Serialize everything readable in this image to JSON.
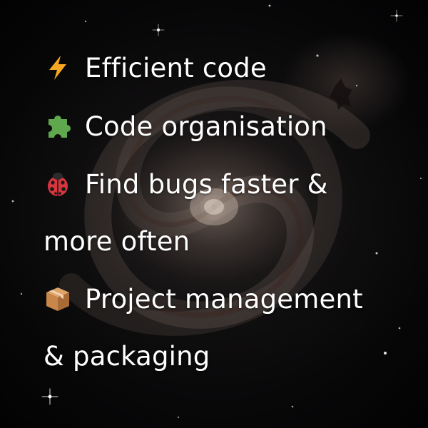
{
  "features": [
    {
      "icon": "lightning-bolt-icon",
      "text": "Efficient code"
    },
    {
      "icon": "puzzle-piece-icon",
      "text": "Code organisation"
    },
    {
      "icon": "ladybug-icon",
      "text": "Find bugs faster &"
    },
    {
      "icon": "",
      "text": "more often"
    },
    {
      "icon": "package-box-icon",
      "text": "Project management"
    },
    {
      "icon": "",
      "text": "& packaging"
    }
  ],
  "colors": {
    "text": "#ffffff",
    "lightning": "#f6a623",
    "puzzle": "#5fa84d",
    "ladybug": "#d9353f",
    "box": "#c8864b"
  }
}
